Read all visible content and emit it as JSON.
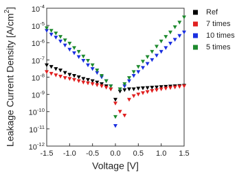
{
  "chart_data": {
    "type": "scatter",
    "log_y": true,
    "xlabel": "Voltage [V]",
    "ylabel": "Leakage Current Density [A/cm2]",
    "x": [
      -1.5,
      -1.4,
      -1.3,
      -1.2,
      -1.1,
      -1.0,
      -0.9,
      -0.8,
      -0.7,
      -0.6,
      -0.5,
      -0.4,
      -0.3,
      -0.2,
      -0.1,
      0,
      0.1,
      0.2,
      0.3,
      0.4,
      0.5,
      0.6,
      0.7,
      0.8,
      0.9,
      1.0,
      1.1,
      1.2,
      1.3,
      1.4,
      1.5
    ],
    "series": [
      {
        "name": "Ref",
        "color": "#000000",
        "values": [
          5e-08,
          4e-08,
          3e-08,
          2.5e-08,
          1.8e-08,
          1.4e-08,
          1.2e-08,
          1e-08,
          8e-09,
          7e-09,
          6e-09,
          5e-09,
          4e-09,
          3e-09,
          2e-09,
          5e-10,
          1.5e-09,
          1.8e-09,
          2e-09,
          2e-09,
          2.2e-09,
          2.3e-09,
          2.4e-09,
          2.5e-09,
          2.6e-09,
          2.7e-09,
          2.8e-09,
          2.9e-09,
          3e-09,
          3.1e-09,
          3.2e-09
        ]
      },
      {
        "name": "7 times",
        "color": "#e02020",
        "values": [
          2e-08,
          1.6e-08,
          1.3e-08,
          1.1e-08,
          9e-09,
          8e-09,
          7e-09,
          6e-09,
          5e-09,
          4.5e-09,
          4e-09,
          3.5e-09,
          3e-09,
          2.5e-09,
          2e-09,
          3e-10,
          1e-10,
          6e-11,
          5e-10,
          8e-10,
          1e-09,
          1.2e-09,
          1.4e-09,
          1.6e-09,
          1.8e-09,
          2e-09,
          2.2e-09,
          2.4e-09,
          2.6e-09,
          2.8e-09,
          3e-09
        ]
      },
      {
        "name": "10 times",
        "color": "#1a2fe0",
        "values": [
          5e-06,
          3e-06,
          2e-06,
          1.2e-06,
          7e-07,
          4e-07,
          2.5e-07,
          1.5e-07,
          9e-08,
          5e-08,
          3e-08,
          1.8e-08,
          1e-08,
          6e-09,
          3e-09,
          1.5e-11,
          2e-09,
          3e-09,
          6e-09,
          1.2e-08,
          2e-08,
          3.5e-08,
          6e-08,
          1e-07,
          1.8e-07,
          3e-07,
          5e-07,
          9e-07,
          1.5e-06,
          2.5e-06,
          4e-06
        ]
      },
      {
        "name": "5 times",
        "color": "#1e8a2e",
        "values": [
          7e-06,
          5e-06,
          3.5e-06,
          2.2e-06,
          1.4e-06,
          9e-07,
          5e-07,
          3e-07,
          1.6e-07,
          9e-08,
          5e-08,
          2.5e-08,
          1.2e-08,
          6e-09,
          3e-09,
          5e-11,
          2e-09,
          4e-09,
          9e-09,
          2e-08,
          4e-08,
          8e-08,
          1.5e-07,
          3e-07,
          6e-07,
          1.2e-06,
          2.2e-06,
          4e-06,
          8e-06,
          1.5e-05,
          3e-05
        ]
      }
    ],
    "xlim": [
      -1.5,
      1.5
    ],
    "xticks": [
      -1.5,
      {
        "value": -1,
        "label": "-1.0"
      },
      -0.5,
      {
        "value": 0,
        "label": "0.0"
      },
      0.5,
      {
        "value": 1,
        "label": "1.0"
      },
      1.5
    ],
    "ylim": [
      1e-12,
      0.0001
    ],
    "yticks": [
      {
        "value": 1e-12,
        "label": "10-12"
      },
      {
        "value": 1e-11,
        "label": "10-11"
      },
      {
        "value": 1e-10,
        "label": "10-10"
      },
      {
        "value": 1e-09,
        "label": "10-9"
      },
      {
        "value": 1e-08,
        "label": "10-8"
      },
      {
        "value": 1e-07,
        "label": "10-7"
      },
      {
        "value": 1e-06,
        "label": "10-6"
      },
      {
        "value": 1e-05,
        "label": "10-5"
      },
      {
        "value": 0.0001,
        "label": "10-4"
      }
    ],
    "legend": "top-right"
  }
}
